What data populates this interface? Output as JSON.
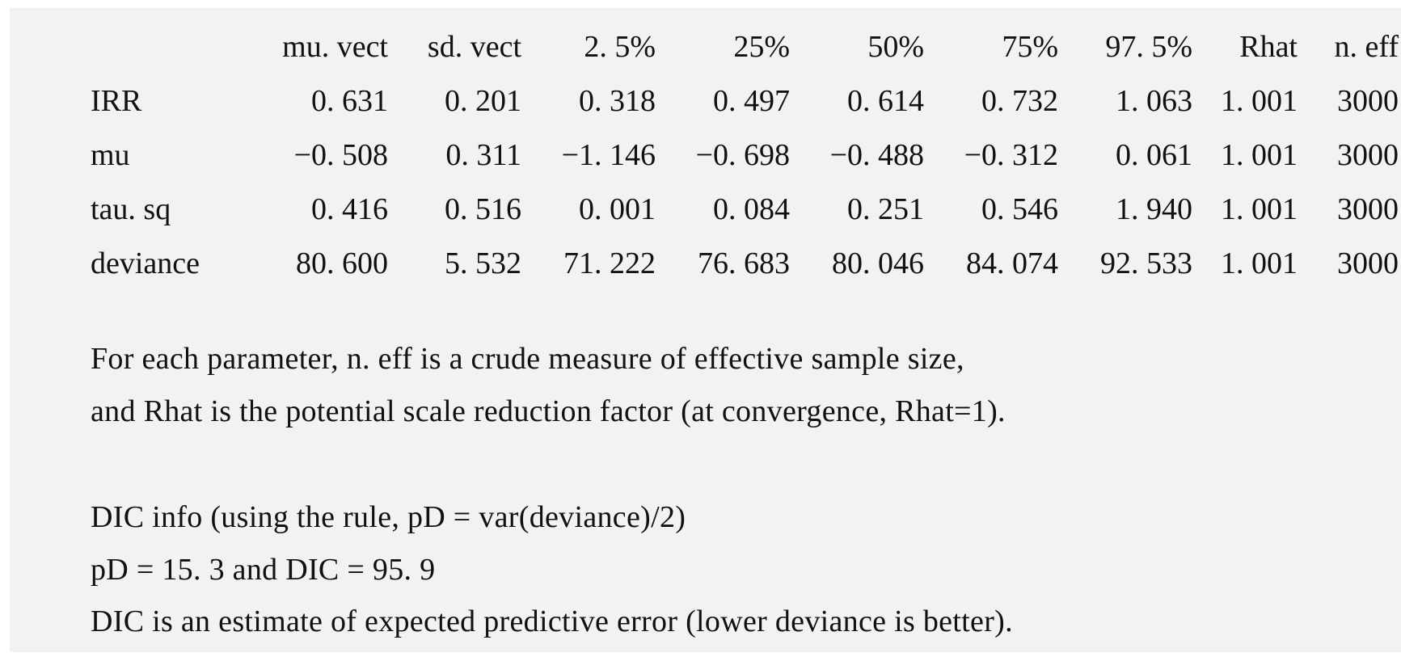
{
  "table": {
    "headers": [
      "mu. vect",
      "sd. vect",
      "2. 5%",
      "25%",
      "50%",
      "75%",
      "97. 5%",
      "Rhat",
      "n. eff"
    ],
    "rows": [
      {
        "name": "IRR",
        "values": [
          "0. 631",
          "0. 201",
          "0. 318",
          "0. 497",
          "0. 614",
          "0. 732",
          "1. 063",
          "1. 001",
          "3000"
        ]
      },
      {
        "name": "mu",
        "values": [
          "−0. 508",
          "0. 311",
          "−1. 146",
          "−0. 698",
          "−0. 488",
          "−0. 312",
          "0. 061",
          "1. 001",
          "3000"
        ]
      },
      {
        "name": "tau. sq",
        "values": [
          "0. 416",
          "0. 516",
          "0. 001",
          "0. 084",
          "0. 251",
          "0. 546",
          "1. 940",
          "1. 001",
          "3000"
        ]
      },
      {
        "name": "deviance",
        "values": [
          "80. 600",
          "5. 532",
          "71. 222",
          "76. 683",
          "80. 046",
          "84. 074",
          "92. 533",
          "1. 001",
          "3000"
        ]
      }
    ]
  },
  "notes": {
    "line1": "For each parameter, n. eff is a crude measure of effective sample size,",
    "line2": "and Rhat is the potential scale reduction factor (at convergence, Rhat=1).",
    "line3": "DIC info (using the rule, pD = var(deviance)/2)",
    "line4": "pD = 15. 3 and DIC = 95. 9",
    "line5": "DIC is an estimate of expected predictive error (lower deviance is better)."
  }
}
